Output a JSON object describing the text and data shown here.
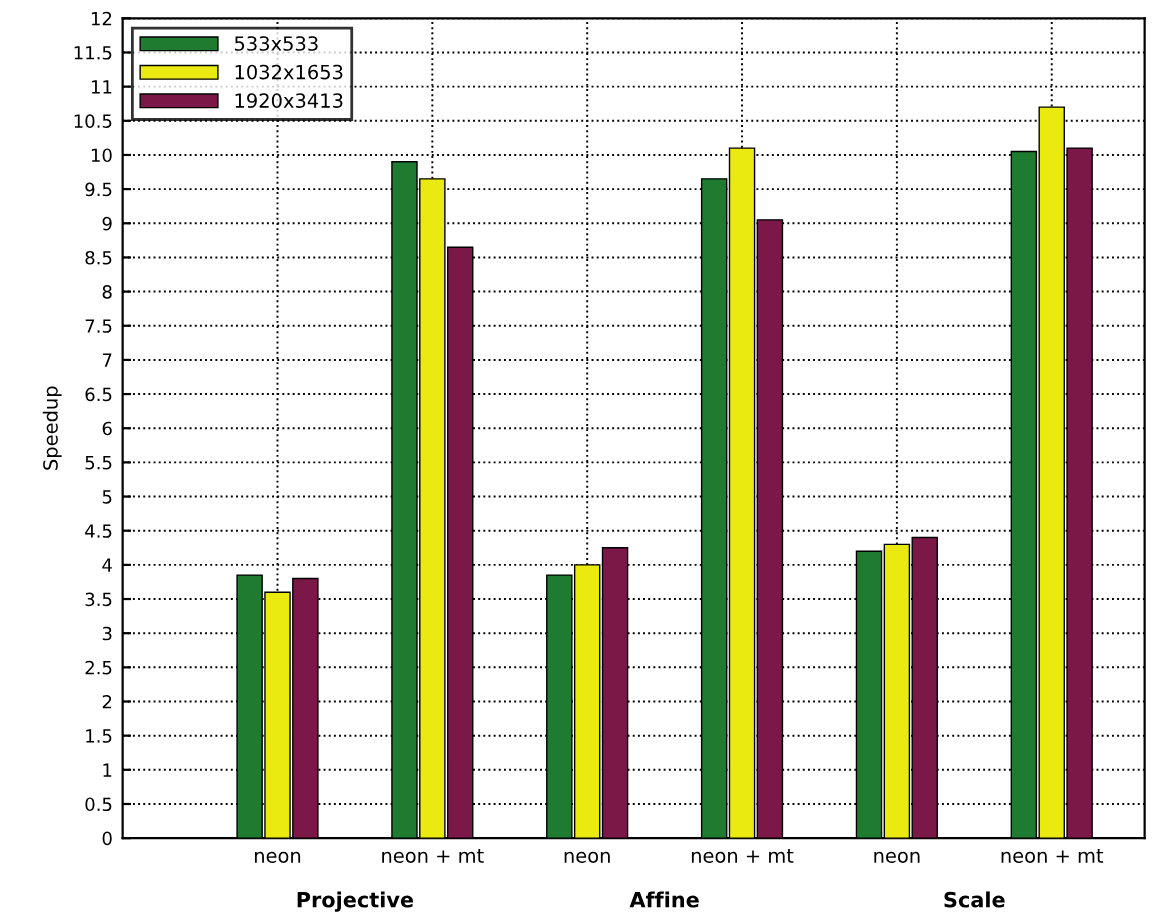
{
  "chart_data": {
    "type": "bar",
    "ylabel": "Speedup",
    "categories": [
      "neon",
      "neon + mt",
      "neon",
      "neon + mt",
      "neon",
      "neon + mt"
    ],
    "series": [
      {
        "name": "533x533",
        "color": "#1e7b30",
        "values": [
          3.85,
          9.9,
          3.85,
          9.65,
          4.2,
          10.05
        ]
      },
      {
        "name": "1032x1653",
        "color": "#eaea10",
        "values": [
          3.6,
          9.65,
          4.0,
          10.1,
          4.3,
          10.7
        ]
      },
      {
        "name": "1920x3413",
        "color": "#7b1848",
        "values": [
          3.8,
          8.65,
          4.25,
          9.05,
          4.4,
          10.1
        ]
      }
    ],
    "annotations": [
      "Projective",
      "Affine",
      "Scale"
    ],
    "ylim": [
      0,
      12
    ],
    "yticks": [
      0,
      0.5,
      1,
      1.5,
      2,
      2.5,
      3,
      3.5,
      4,
      4.5,
      5,
      5.5,
      6,
      6.5,
      7,
      7.5,
      8,
      8.5,
      9,
      9.5,
      10,
      10.5,
      11,
      11.5,
      12
    ],
    "grid": true,
    "legend": "top left"
  }
}
